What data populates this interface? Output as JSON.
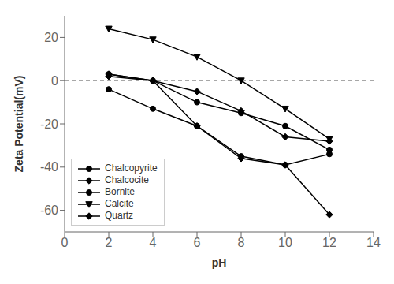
{
  "chart_data": {
    "type": "line",
    "xlabel": "pH",
    "ylabel": "Zeta Potential(mV)",
    "x": [
      2,
      4,
      6,
      8,
      10,
      12
    ],
    "xlim": [
      0,
      14
    ],
    "ylim": [
      -70,
      30
    ],
    "xticks": [
      0,
      2,
      4,
      6,
      8,
      10,
      12,
      14
    ],
    "yticks": [
      -60,
      -40,
      -20,
      0,
      20
    ],
    "color": "black",
    "grid": false,
    "legend": "lower left",
    "reference_line": {
      "y": 0,
      "line_style": "dashed"
    },
    "series": [
      {
        "name": "Chalcopyrite",
        "marker": "circle",
        "values": [
          3,
          0,
          -10,
          -15,
          -21,
          -32
        ]
      },
      {
        "name": "Chalcocite",
        "marker": "diamond",
        "values": [
          2,
          0,
          -5,
          -14,
          -26,
          -28
        ]
      },
      {
        "name": "Bornite",
        "marker": "circle",
        "values": [
          -4,
          -13,
          -21,
          -35,
          -39,
          -34
        ]
      },
      {
        "name": "Calcite",
        "marker": "triangle-down",
        "values": [
          24,
          19,
          11,
          0,
          -13,
          -27
        ]
      },
      {
        "name": "Quartz",
        "marker": "diamond",
        "values": [
          3,
          0,
          -21,
          -36,
          -39,
          -62
        ]
      }
    ]
  }
}
